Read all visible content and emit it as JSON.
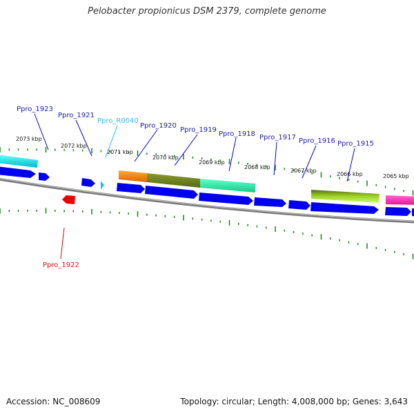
{
  "title": "Pelobacter propionicus DSM 2379, complete genome",
  "footer": {
    "accession": "Accession: NC_008609",
    "topology": "Topology: circular; Length: 4,008,000 bp; Genes: 3,643"
  },
  "colors": {
    "forward_gene": "#0000ee",
    "reverse_gene": "#ee0000",
    "rna_gene": "#22bbee",
    "backbone": "#888888",
    "tick": "#228822",
    "label_forward": "#1a1aa8",
    "label_reverse": "#cc1111",
    "label_rna": "#33bbee"
  },
  "kbp_labels": [
    "2073 kbp",
    "2072 kbp",
    "2071 kbp",
    "2070 kbp",
    "2069 kbp",
    "2068 kbp",
    "2067 kbp",
    "2066 kbp",
    "2065 kbp"
  ],
  "gene_labels": [
    {
      "text": "Ppro_1923",
      "type": "forward"
    },
    {
      "text": "Ppro_1921",
      "type": "forward"
    },
    {
      "text": "Ppro_R0040",
      "type": "rna"
    },
    {
      "text": "Ppro_1920",
      "type": "forward"
    },
    {
      "text": "Ppro_1919",
      "type": "forward"
    },
    {
      "text": "Ppro_1918",
      "type": "forward"
    },
    {
      "text": "Ppro_1917",
      "type": "forward"
    },
    {
      "text": "Ppro_1916",
      "type": "forward"
    },
    {
      "text": "Ppro_1915",
      "type": "forward"
    },
    {
      "text": "Ppro_1922",
      "type": "reverse"
    }
  ]
}
